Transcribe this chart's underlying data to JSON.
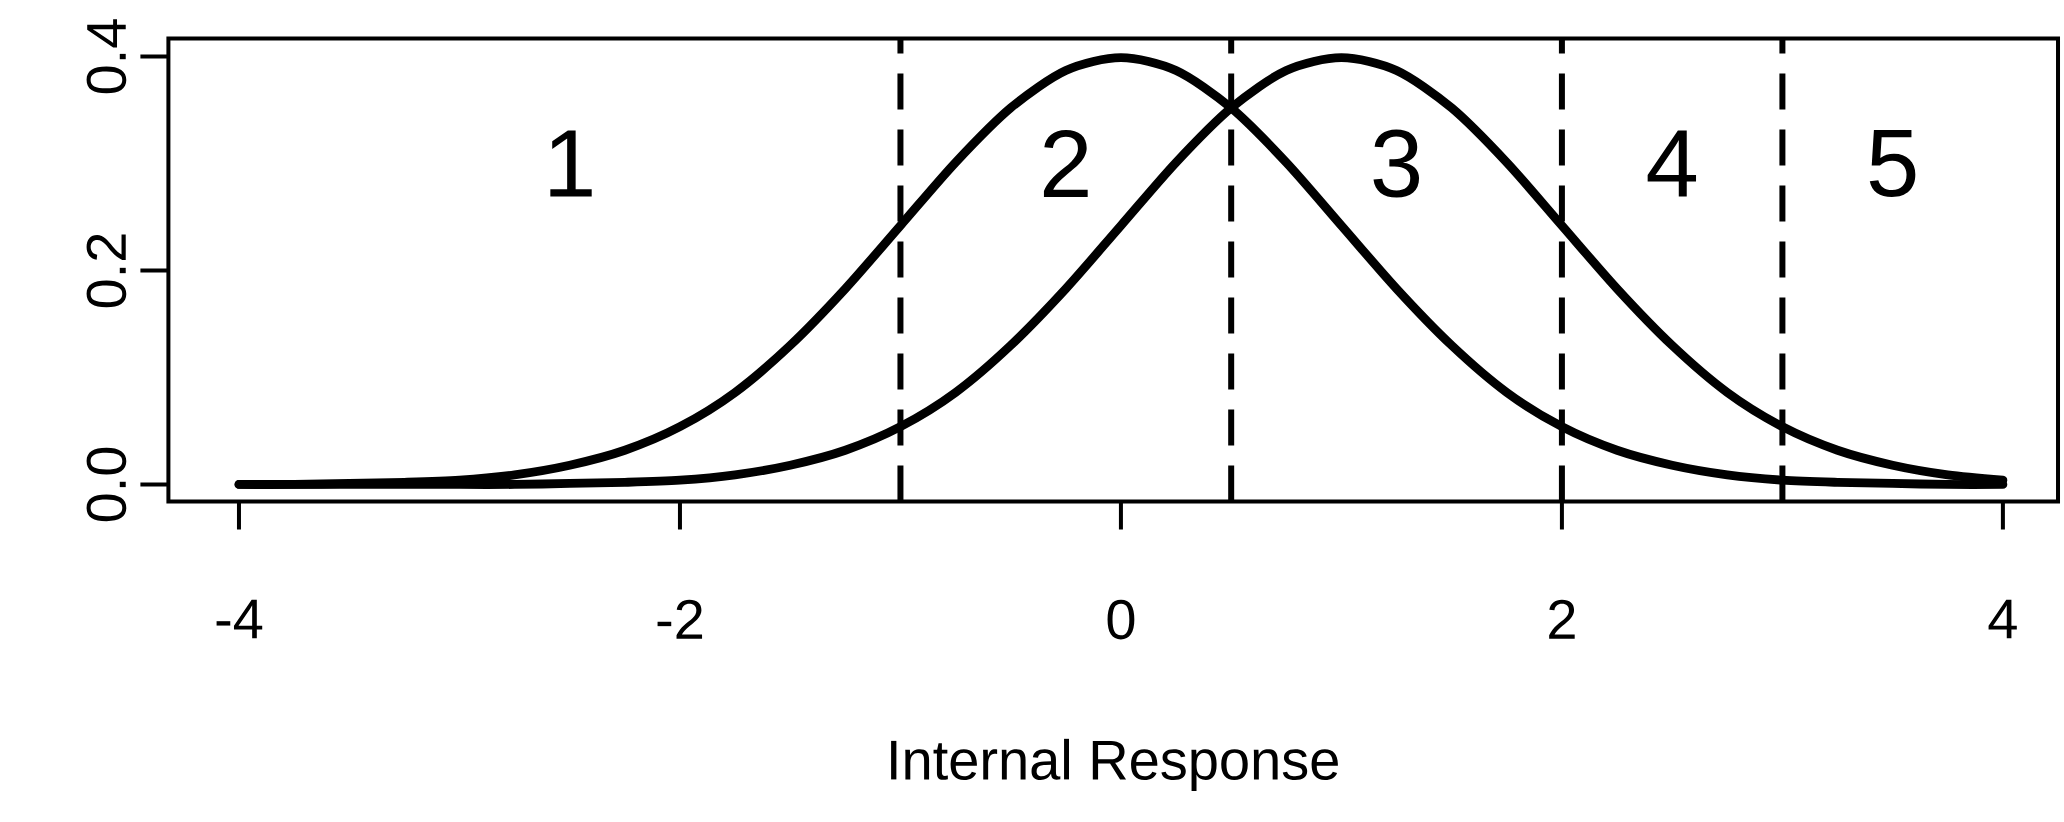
{
  "chart_data": {
    "type": "line",
    "xlabel": "Internal Response",
    "x": [
      -4,
      -3.75,
      -3.5,
      -3.25,
      -3,
      -2.75,
      -2.5,
      -2.25,
      -2,
      -1.75,
      -1.5,
      -1.25,
      -1,
      -0.75,
      -0.5,
      -0.25,
      0,
      0.25,
      0.5,
      0.75,
      1,
      1.25,
      1.5,
      1.75,
      2,
      2.25,
      2.5,
      2.75,
      3,
      3.25,
      3.5,
      3.75,
      4
    ],
    "series": [
      {
        "color": "#000000",
        "values": [
          0.0,
          0.0,
          0.001,
          0.002,
          0.004,
          0.009,
          0.018,
          0.032,
          0.054,
          0.086,
          0.13,
          0.183,
          0.242,
          0.301,
          0.352,
          0.387,
          0.399,
          0.387,
          0.352,
          0.301,
          0.242,
          0.183,
          0.13,
          0.086,
          0.054,
          0.032,
          0.018,
          0.009,
          0.004,
          0.002,
          0.001,
          0.0,
          0.0
        ]
      },
      {
        "color": "#000000",
        "values": [
          0.0,
          0.0,
          0.0,
          0.0,
          0.0,
          0.0,
          0.001,
          0.002,
          0.004,
          0.009,
          0.018,
          0.032,
          0.054,
          0.086,
          0.13,
          0.183,
          0.242,
          0.301,
          0.352,
          0.387,
          0.399,
          0.387,
          0.352,
          0.301,
          0.242,
          0.183,
          0.13,
          0.086,
          0.054,
          0.032,
          0.018,
          0.009,
          0.004
        ]
      }
    ],
    "xlim": [
      -4.32,
      4.25
    ],
    "ylim": [
      -0.016,
      0.417
    ],
    "xticks": [
      -4,
      -2,
      0,
      2,
      4
    ],
    "yticks": [
      {
        "value": 0,
        "label": "0.0"
      },
      0.2,
      0.4
    ],
    "ref_lines": [
      {
        "axis": "x",
        "value": -1,
        "line_style": "dashed",
        "color": "#000000"
      },
      {
        "axis": "x",
        "value": 0.5,
        "line_style": "dashed",
        "color": "#000000"
      },
      {
        "axis": "x",
        "value": 2,
        "line_style": "dashed",
        "color": "#000000"
      },
      {
        "axis": "x",
        "value": 3,
        "line_style": "dashed",
        "color": "#000000"
      }
    ],
    "annotations": [
      "1",
      "2",
      "3",
      "4",
      "5"
    ]
  }
}
